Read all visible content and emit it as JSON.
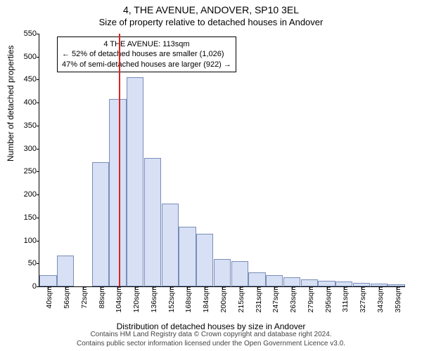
{
  "title": "4, THE AVENUE, ANDOVER, SP10 3EL",
  "subtitle": "Size of property relative to detached houses in Andover",
  "ylabel": "Number of detached properties",
  "xlabel": "Distribution of detached houses by size in Andover",
  "footer_line1": "Contains HM Land Registry data © Crown copyright and database right 2024.",
  "footer_line2": "Contains public sector information licensed under the Open Government Licence v3.0.",
  "chart": {
    "type": "histogram",
    "ylim": [
      0,
      550
    ],
    "ytick_step": 50,
    "bar_fill": "#d7e0f4",
    "bar_border": "#7a8db8",
    "background": "#ffffff",
    "axis_color": "#000000",
    "marker_color": "#d22",
    "marker_x_category": "104sqm",
    "marker_x_offset": 0.56,
    "categories": [
      "40sqm",
      "56sqm",
      "72sqm",
      "88sqm",
      "104sqm",
      "120sqm",
      "136sqm",
      "152sqm",
      "168sqm",
      "184sqm",
      "200sqm",
      "215sqm",
      "231sqm",
      "247sqm",
      "263sqm",
      "279sqm",
      "295sqm",
      "311sqm",
      "327sqm",
      "343sqm",
      "359sqm"
    ],
    "values": [
      25,
      67,
      0,
      270,
      408,
      455,
      280,
      180,
      130,
      115,
      60,
      55,
      30,
      25,
      20,
      15,
      12,
      10,
      8,
      6,
      5
    ],
    "title_fontsize": 14,
    "label_fontsize": 12,
    "tick_fontsize": 11
  },
  "annotation": {
    "line1": "4 THE AVENUE: 113sqm",
    "line2": "← 52% of detached houses are smaller (1,026)",
    "line3": "47% of semi-detached houses are larger (922) →"
  }
}
